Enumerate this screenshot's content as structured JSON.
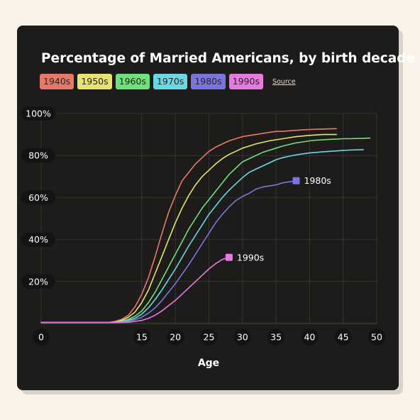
{
  "chart_data": {
    "type": "line",
    "title": "Percentage of Married Americans, by birth decade",
    "xlabel": "Age",
    "ylabel": "",
    "xlim": [
      0,
      50
    ],
    "ylim": [
      0,
      100
    ],
    "x_ticks": [
      "0",
      "15",
      "20",
      "25",
      "30",
      "35",
      "40",
      "45",
      "50"
    ],
    "y_ticks": [
      "20%",
      "40%",
      "60%",
      "80%",
      "100%"
    ],
    "grid": true,
    "legend_position": "top-left",
    "source_label": "Source",
    "end_labels": [
      "1980s",
      "1990s"
    ],
    "series": [
      {
        "name": "1940s",
        "color": "#e8786a",
        "x": [
          0,
          1,
          2,
          3,
          4,
          5,
          6,
          7,
          8,
          9,
          10,
          11,
          12,
          13,
          14,
          15,
          16,
          17,
          18,
          19,
          20,
          21,
          22,
          23,
          24,
          25,
          26,
          27,
          28,
          29,
          30,
          31,
          32,
          33,
          34,
          35,
          36,
          37,
          38,
          39,
          40,
          41,
          42,
          43,
          44
        ],
        "y": [
          0.5,
          0.5,
          0.5,
          0.5,
          0.5,
          0.5,
          0.5,
          0.5,
          0.5,
          0.5,
          0.5,
          1,
          2,
          4,
          8,
          14,
          22,
          32,
          43,
          53,
          61,
          68,
          72,
          76,
          79,
          82,
          84,
          85.5,
          87,
          88,
          89,
          89.5,
          90,
          90.5,
          91,
          91.5,
          91.5,
          91.8,
          92,
          92.2,
          92.4,
          92.5,
          92.6,
          92.7,
          92.8
        ]
      },
      {
        "name": "1950s",
        "color": "#e6e36e",
        "x": [
          0,
          1,
          2,
          3,
          4,
          5,
          6,
          7,
          8,
          9,
          10,
          11,
          12,
          13,
          14,
          15,
          16,
          17,
          18,
          19,
          20,
          21,
          22,
          23,
          24,
          25,
          26,
          27,
          28,
          29,
          30,
          31,
          32,
          33,
          34,
          35,
          36,
          37,
          38,
          39,
          40,
          41,
          42,
          43,
          44
        ],
        "y": [
          0.5,
          0.5,
          0.5,
          0.5,
          0.5,
          0.5,
          0.5,
          0.5,
          0.5,
          0.5,
          0.5,
          0.7,
          1.5,
          3,
          5.5,
          10,
          16,
          24,
          32,
          40,
          48,
          55,
          61,
          66,
          70,
          73,
          76,
          78.5,
          80.5,
          82,
          83.5,
          84.5,
          85.5,
          86.3,
          87,
          87.5,
          88,
          88.5,
          89,
          89.3,
          89.6,
          89.8,
          90,
          90,
          90
        ]
      },
      {
        "name": "1960s",
        "color": "#6ee07c",
        "x": [
          0,
          1,
          2,
          3,
          4,
          5,
          6,
          7,
          8,
          9,
          10,
          11,
          12,
          13,
          14,
          15,
          16,
          17,
          18,
          19,
          20,
          21,
          22,
          23,
          24,
          25,
          26,
          27,
          28,
          29,
          30,
          31,
          32,
          33,
          34,
          35,
          36,
          37,
          38,
          39,
          40,
          41,
          42,
          43,
          44,
          45,
          46,
          47,
          48,
          49
        ],
        "y": [
          0.5,
          0.5,
          0.5,
          0.5,
          0.5,
          0.5,
          0.5,
          0.5,
          0.5,
          0.5,
          0.5,
          0.6,
          1,
          2,
          3.5,
          6,
          10,
          15,
          21,
          27,
          33,
          39,
          45,
          50,
          55,
          59,
          63,
          67,
          71,
          74,
          77,
          78.5,
          80,
          81.5,
          82.5,
          83.5,
          84.5,
          85.3,
          86,
          86.5,
          87,
          87.3,
          87.5,
          87.7,
          87.8,
          88,
          88,
          88.1,
          88.2,
          88.3
        ]
      },
      {
        "name": "1970s",
        "color": "#6ad8e3",
        "x": [
          0,
          1,
          2,
          3,
          4,
          5,
          6,
          7,
          8,
          9,
          10,
          11,
          12,
          13,
          14,
          15,
          16,
          17,
          18,
          19,
          20,
          21,
          22,
          23,
          24,
          25,
          26,
          27,
          28,
          29,
          30,
          31,
          32,
          33,
          34,
          35,
          36,
          37,
          38,
          39,
          40,
          41,
          42,
          43,
          44,
          45,
          46,
          47,
          48
        ],
        "y": [
          0.5,
          0.5,
          0.5,
          0.5,
          0.5,
          0.5,
          0.5,
          0.5,
          0.5,
          0.5,
          0.5,
          0.5,
          0.8,
          1.5,
          2.5,
          4.5,
          7.5,
          11.5,
          16,
          21,
          26,
          31.5,
          37,
          42,
          47,
          52,
          56,
          60,
          63.5,
          66.5,
          69.5,
          72,
          73.5,
          75,
          76.5,
          78,
          79,
          79.7,
          80.3,
          80.8,
          81.2,
          81.5,
          81.8,
          82,
          82.2,
          82.4,
          82.6,
          82.7,
          82.8
        ]
      },
      {
        "name": "1980s",
        "color": "#7a74e0",
        "x": [
          0,
          1,
          2,
          3,
          4,
          5,
          6,
          7,
          8,
          9,
          10,
          11,
          12,
          13,
          14,
          15,
          16,
          17,
          18,
          19,
          20,
          21,
          22,
          23,
          24,
          25,
          26,
          27,
          28,
          29,
          30,
          31,
          32,
          33,
          34,
          35,
          36,
          37,
          38
        ],
        "y": [
          0.5,
          0.5,
          0.5,
          0.5,
          0.5,
          0.5,
          0.5,
          0.5,
          0.5,
          0.5,
          0.5,
          0.5,
          0.6,
          1,
          1.8,
          3,
          5,
          7.5,
          11,
          15,
          19,
          23.5,
          28,
          33,
          38,
          43,
          48,
          52,
          55.5,
          58.5,
          60.5,
          62,
          64,
          65,
          65.5,
          66,
          67,
          67.5,
          68
        ]
      },
      {
        "name": "1990s",
        "color": "#e67ae0",
        "x": [
          0,
          1,
          2,
          3,
          4,
          5,
          6,
          7,
          8,
          9,
          10,
          11,
          12,
          13,
          14,
          15,
          16,
          17,
          18,
          19,
          20,
          21,
          22,
          23,
          24,
          25,
          26,
          27,
          28
        ],
        "y": [
          0.5,
          0.5,
          0.5,
          0.5,
          0.5,
          0.5,
          0.5,
          0.5,
          0.5,
          0.5,
          0.5,
          0.5,
          0.5,
          0.6,
          1,
          1.5,
          2.5,
          4,
          6,
          8.5,
          11,
          14,
          17,
          20,
          23,
          26,
          28.5,
          30.5,
          31.5
        ]
      }
    ]
  }
}
